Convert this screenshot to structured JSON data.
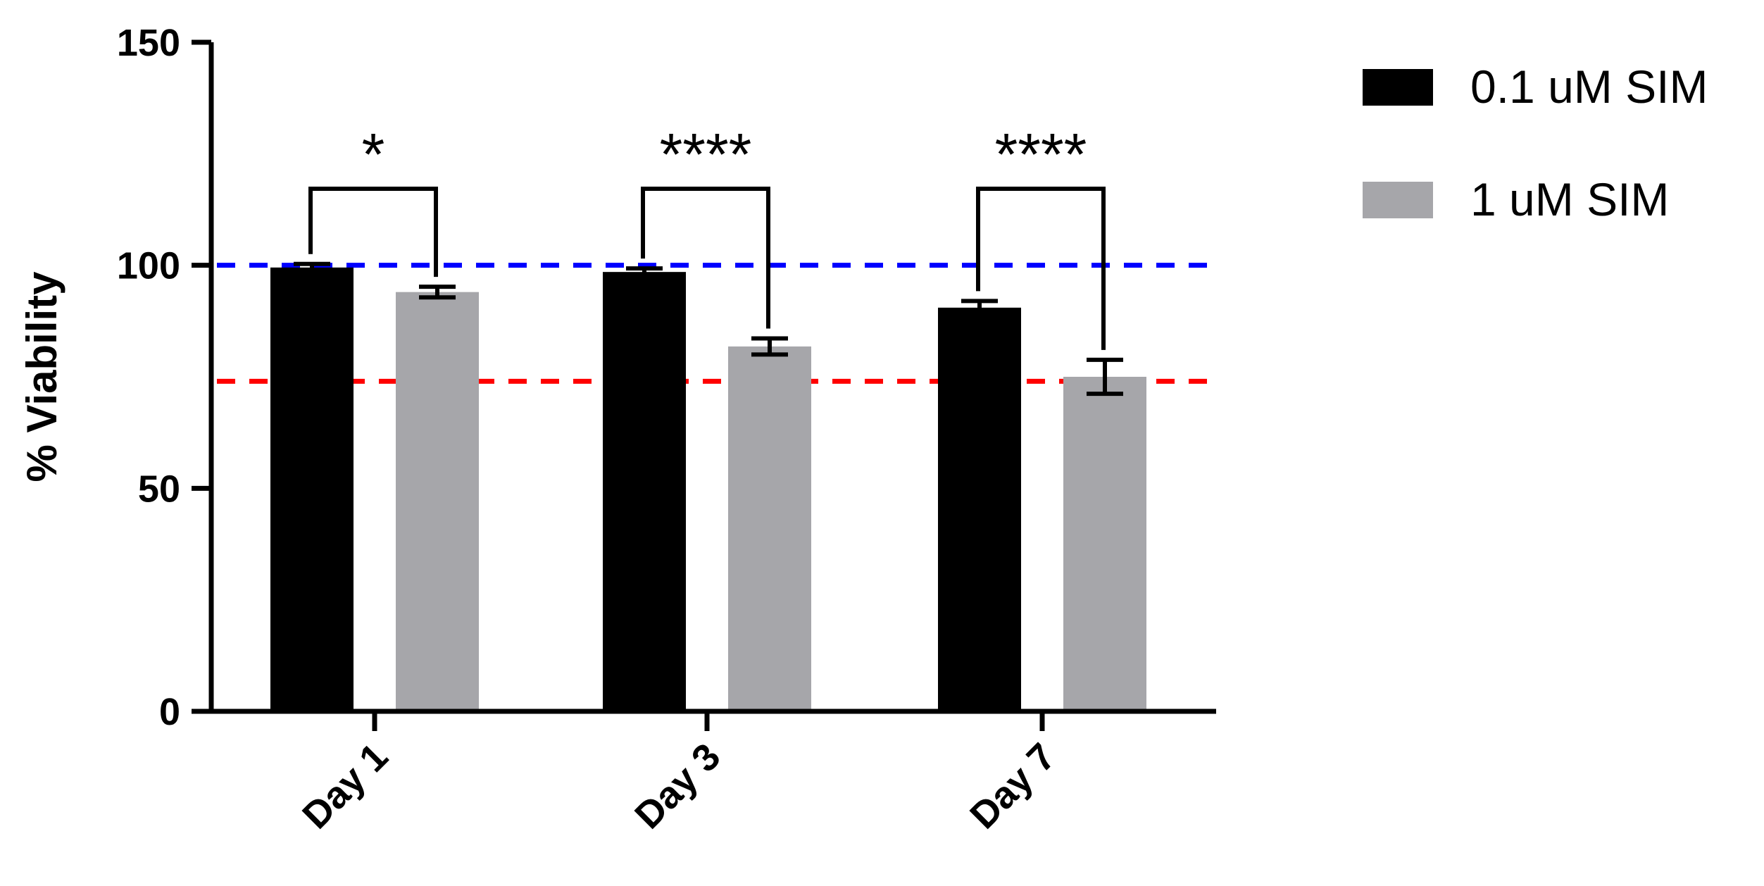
{
  "chart_data": {
    "type": "bar",
    "categories": [
      "Day 1",
      "Day 3",
      "Day 7"
    ],
    "series": [
      {
        "name": "0.1 uM SIM",
        "color": "#000000",
        "values": [
          99.5,
          98.5,
          90.5
        ],
        "errors": [
          0.8,
          0.8,
          1.5
        ]
      },
      {
        "name": "1 uM SIM",
        "color": "#a6a6aa",
        "values": [
          94.0,
          81.8,
          75.0
        ],
        "errors": [
          1.2,
          1.8,
          3.8
        ]
      }
    ],
    "xlabel": "",
    "ylabel": "% Viability",
    "ylim": [
      0,
      150
    ],
    "yticks": [
      0,
      50,
      100,
      150
    ],
    "reference_lines": [
      {
        "y": 100,
        "color": "#0000ff",
        "style": "dashed"
      },
      {
        "y": 74,
        "color": "#ff0000",
        "style": "dashed"
      }
    ],
    "significance": [
      {
        "category": "Day 1",
        "label": "*"
      },
      {
        "category": "Day 3",
        "label": "****"
      },
      {
        "category": "Day 7",
        "label": "****"
      }
    ],
    "legend_placement": "top-right",
    "grid": false
  }
}
